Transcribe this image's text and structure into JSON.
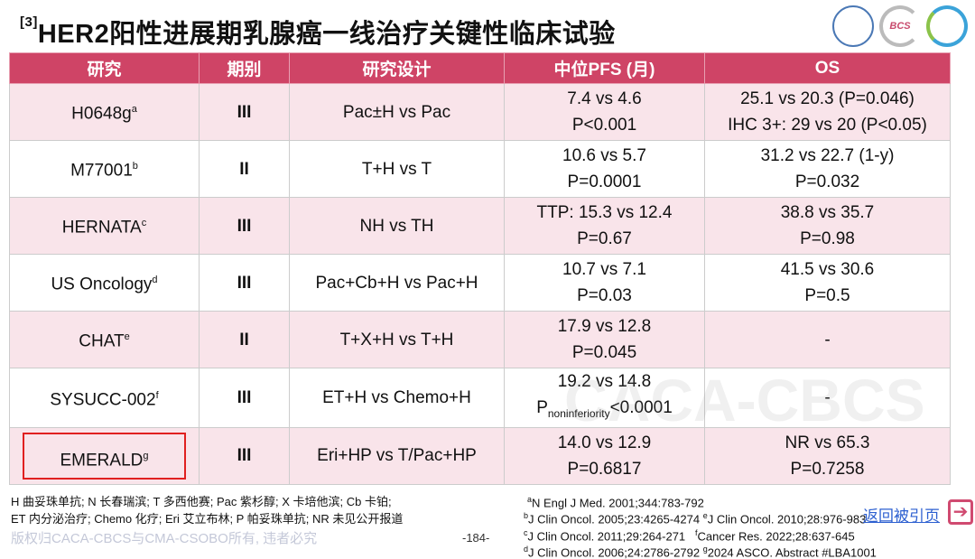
{
  "title": {
    "ref": "[3]",
    "text": "HER2阳性进展期乳腺癌一线治疗关键性临床试验"
  },
  "logos": [
    "logo-1",
    "BCS",
    "logo-3"
  ],
  "table": {
    "headers": [
      "研究",
      "期别",
      "研究设计",
      "中位PFS (月)",
      "OS"
    ],
    "rows": [
      {
        "study": "H0648g",
        "sup": "a",
        "phase": "III",
        "design": "Pac±H vs Pac",
        "pfs1": "7.4 vs 4.6",
        "pfs2": "P<0.001",
        "os1": "25.1 vs 20.3 (P=0.046)",
        "os2": "IHC 3+: 29 vs 20 (P<0.05)"
      },
      {
        "study": "M77001",
        "sup": "b",
        "phase": "II",
        "design": "T+H vs T",
        "pfs1": "10.6 vs 5.7",
        "pfs2": "P=0.0001",
        "os1": "31.2 vs 22.7 (1-y)",
        "os2": "P=0.032"
      },
      {
        "study": "HERNATA",
        "sup": "c",
        "phase": "III",
        "design": "NH vs TH",
        "pfs1": "TTP: 15.3 vs 12.4",
        "pfs2": "P=0.67",
        "os1": "38.8 vs 35.7",
        "os2": "P=0.98"
      },
      {
        "study": "US Oncology",
        "sup": "d",
        "phase": "III",
        "design": "Pac+Cb+H vs Pac+H",
        "pfs1": "10.7 vs 7.1",
        "pfs2": "P=0.03",
        "os1": "41.5 vs 30.6",
        "os2": "P=0.5"
      },
      {
        "study": "CHAT",
        "sup": "e",
        "phase": "II",
        "design": "T+X+H vs T+H",
        "pfs1": "17.9 vs 12.8",
        "pfs2": "P=0.045",
        "os1": "-",
        "os2": ""
      },
      {
        "study": "SYSUCC-002",
        "sup": "f",
        "phase": "III",
        "design": "ET+H vs Chemo+H",
        "pfs1": "19.2 vs 14.8",
        "pfs2_p": "P",
        "pfs2_sub": "noninferiority",
        "pfs2": "<0.0001",
        "os1": "-",
        "os2": ""
      },
      {
        "study": "EMERALD",
        "sup": "g",
        "phase": "III",
        "design": "Eri+HP vs T/Pac+HP",
        "pfs1": "14.0 vs 12.9",
        "pfs2": "P=0.6817",
        "os1": "NR vs 65.3",
        "os2": "P=0.7258"
      }
    ]
  },
  "watermark": "CACA-CBCS",
  "footer": {
    "abbr1": "H 曲妥珠单抗; N 长春瑞滨; T 多西他赛; Pac 紫杉醇; X 卡培他滨; Cb 卡铂;",
    "abbr2": "ET 内分泌治疗; Chemo 化疗; Eri 艾立布林; P 帕妥珠单抗; NR 未见公开报道",
    "copyright": "版权归CACA-CBCS与CMA-CSOBO所有, 违者必究",
    "page": "-184-",
    "refs": [
      {
        "s": "a",
        "t": "N Engl J Med. 2001;344:783-792"
      },
      {
        "s": "b",
        "t": "J Clin Oncol. 2005;23:4265-4274"
      },
      {
        "s": "e",
        "t": "J Clin Oncol. 2010;28:976-983"
      },
      {
        "s": "c",
        "t": "J Clin Oncol. 2011;29:264-271"
      },
      {
        "s": "f",
        "t": "Cancer Res. 2022;28:637-645"
      },
      {
        "s": "d",
        "t": "J Clin Oncol. 2006;24:2786-2792"
      },
      {
        "s": "g",
        "t": "2024 ASCO. Abstract #LBA1001"
      }
    ],
    "back": "返回被引页"
  },
  "colors": {
    "header": "#cf4466",
    "row_alt": "#f9e4ea",
    "highlight": "#e02020",
    "link": "#2c5fd0"
  }
}
